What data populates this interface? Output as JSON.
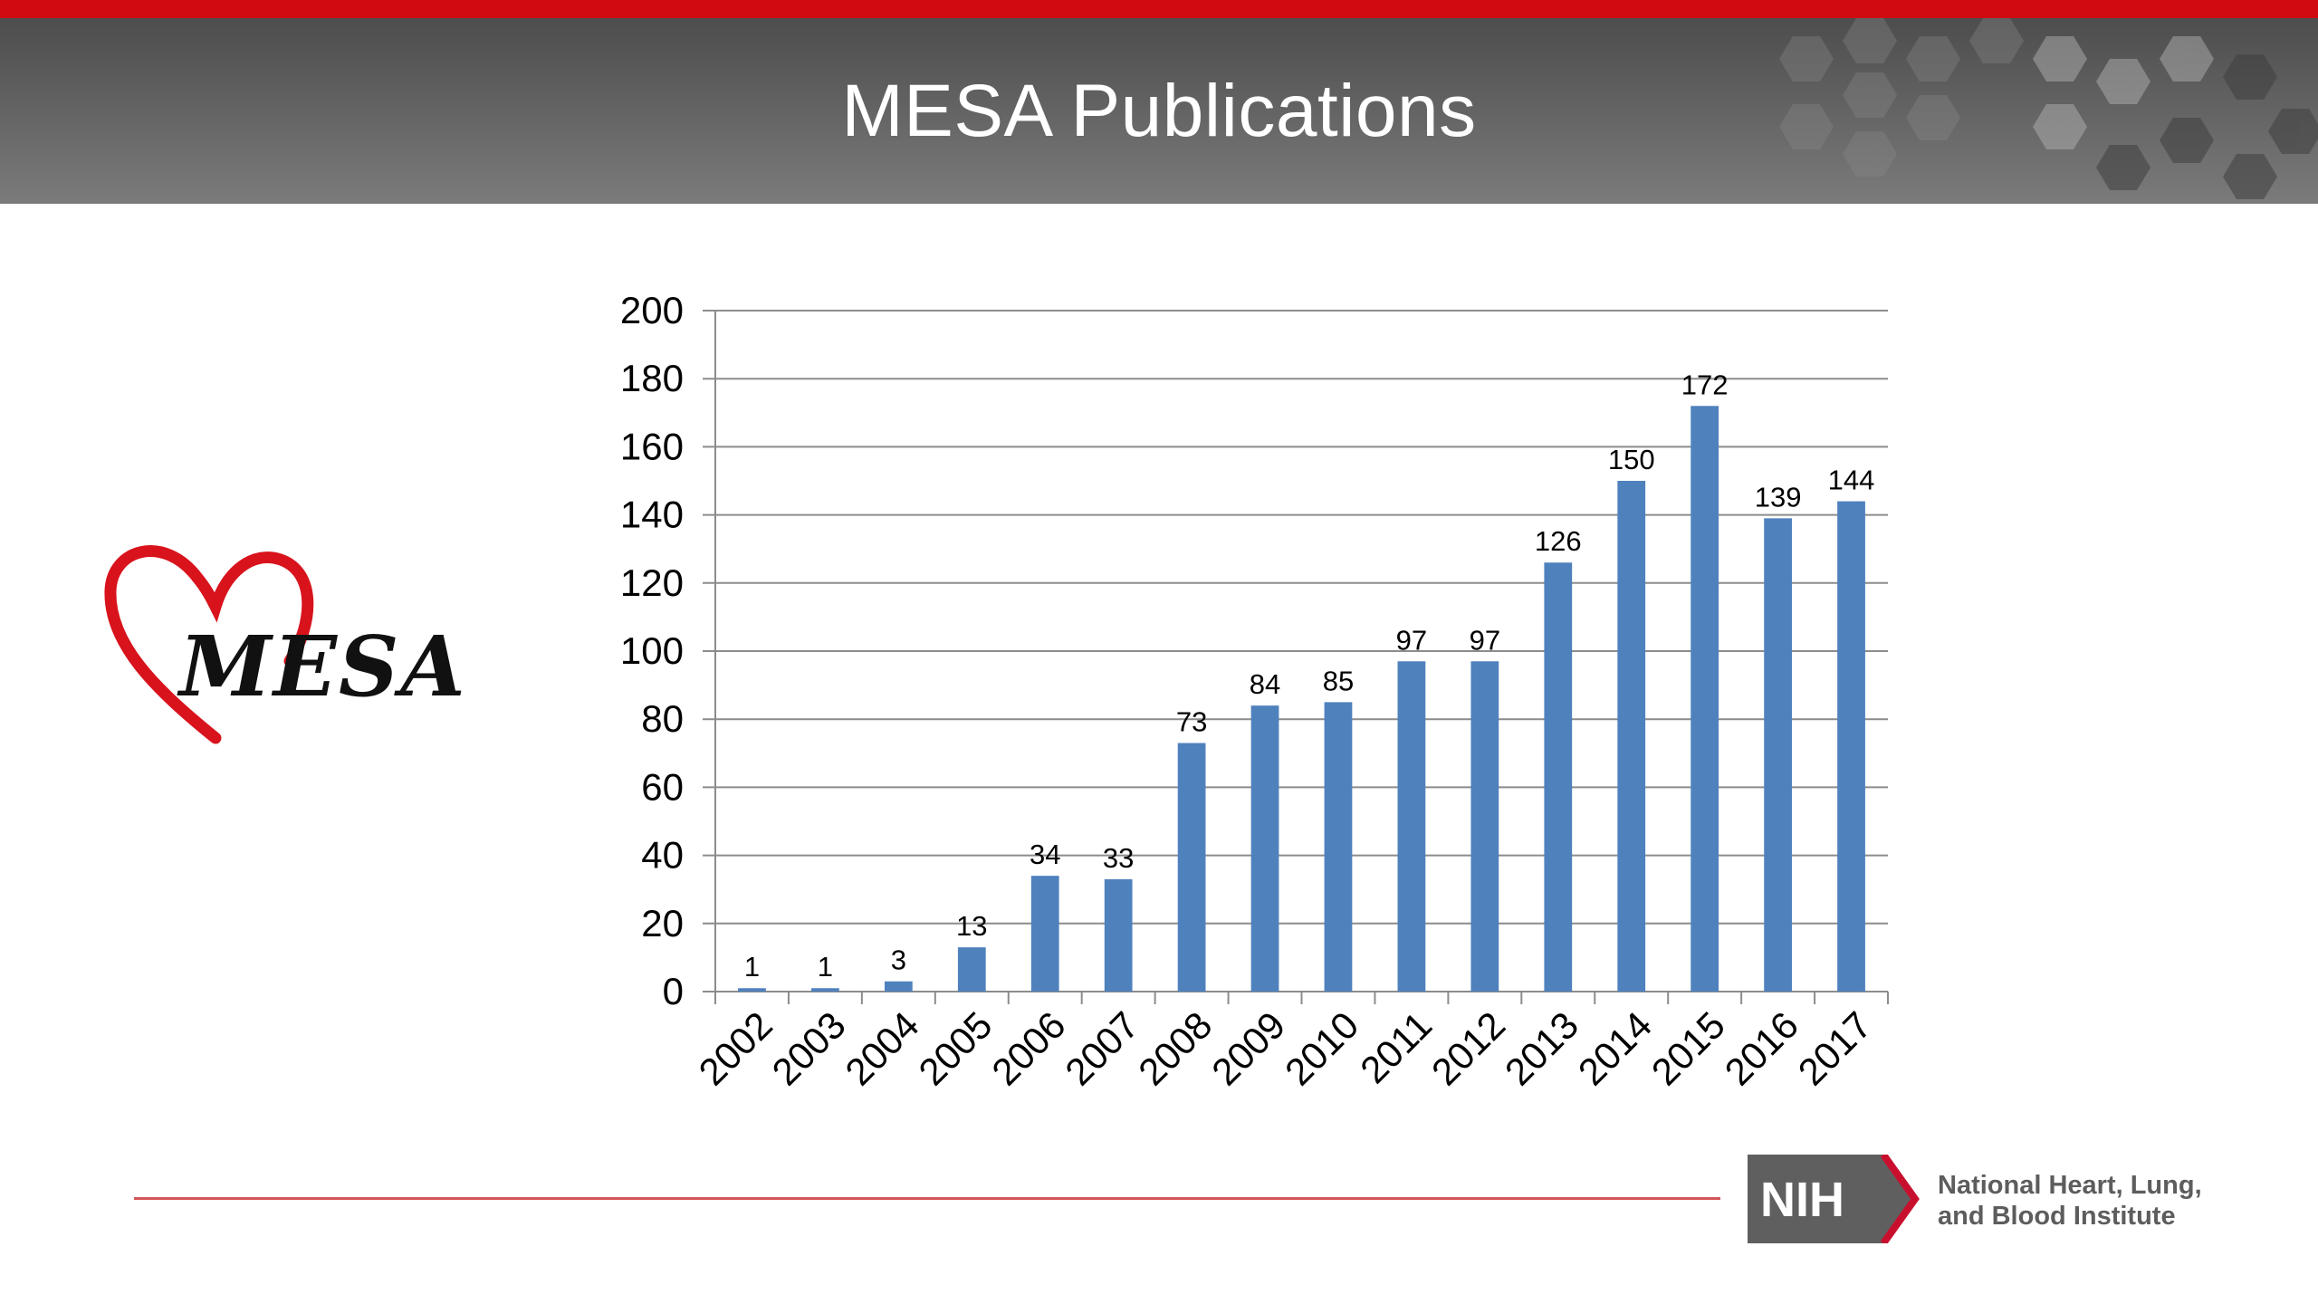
{
  "slide": {
    "title": "MESA Publications",
    "logo_text": "MESA"
  },
  "footer": {
    "nih_badge": "NIH",
    "institute_line1": "National Heart, Lung,",
    "institute_line2": "and Blood Institute"
  },
  "colors": {
    "accent_red": "#d10a11",
    "bar_blue": "#4f81bd",
    "header_gray": "#5c5c5c"
  },
  "chart_data": {
    "type": "bar",
    "title": "",
    "xlabel": "",
    "ylabel": "",
    "categories": [
      "2002",
      "2003",
      "2004",
      "2005",
      "2006",
      "2007",
      "2008",
      "2009",
      "2010",
      "2011",
      "2012",
      "2013",
      "2014",
      "2015",
      "2016",
      "2017"
    ],
    "values": [
      1,
      1,
      3,
      13,
      34,
      33,
      73,
      84,
      85,
      97,
      97,
      126,
      150,
      172,
      139,
      144
    ],
    "data_labels": [
      "1",
      "1",
      "3",
      "13",
      "34",
      "33",
      "73",
      "84",
      "85",
      "97",
      "97",
      "126",
      "150",
      "172",
      "139",
      "144"
    ],
    "ylim": [
      0,
      200
    ],
    "y_ticks": [
      "0",
      "20",
      "40",
      "60",
      "80",
      "100",
      "120",
      "140",
      "160",
      "180",
      "200"
    ],
    "grid": true,
    "legend": "none"
  }
}
